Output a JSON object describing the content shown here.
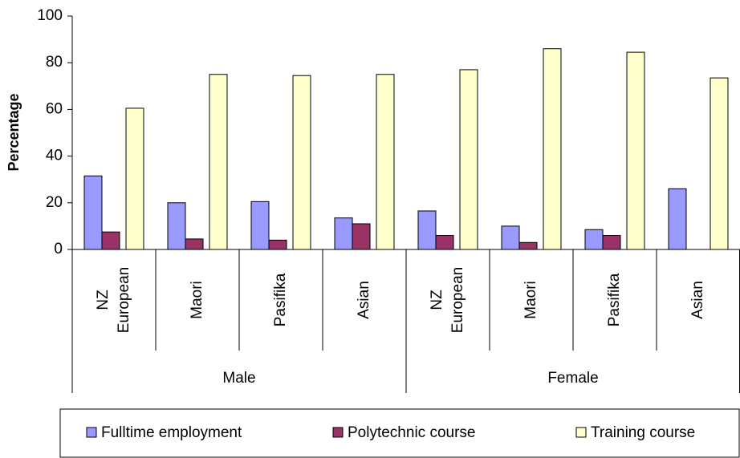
{
  "chart_data": {
    "type": "bar",
    "y_label": "Percentage",
    "categories": [
      "NZ European",
      "Maori",
      "Pasifika",
      "Asian",
      "NZ European",
      "Maori",
      "Pasifika",
      "Asian"
    ],
    "groups": [
      "Male",
      "Female"
    ],
    "series": [
      {
        "name": "Fulltime employment",
        "color": "#9999ff",
        "values": [
          31.5,
          20,
          20.5,
          13.5,
          16.5,
          10,
          8.5,
          26
        ]
      },
      {
        "name": "Polytechnic course",
        "color": "#993366",
        "values": [
          7.5,
          4.5,
          4,
          11,
          6,
          3,
          6,
          0
        ]
      },
      {
        "name": "Training course",
        "color": "#ffffcc",
        "values": [
          60.5,
          75,
          74.5,
          75,
          77,
          86,
          84.5,
          73.5
        ]
      }
    ],
    "ylim": [
      0,
      100
    ],
    "yticks": [
      0,
      20,
      40,
      60,
      80,
      100
    ],
    "grid": false
  }
}
